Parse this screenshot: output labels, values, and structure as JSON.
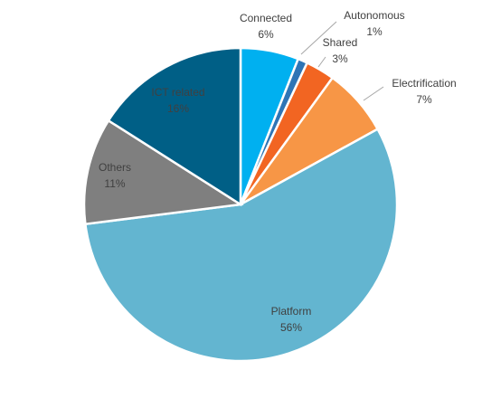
{
  "chart_data": {
    "type": "pie",
    "categories": [
      "Connected",
      "Autonomous",
      "Shared",
      "Electrification",
      "Platform",
      "Others",
      "ICT related"
    ],
    "values": [
      6,
      1,
      3,
      7,
      56,
      11,
      16
    ],
    "value_labels": [
      "6%",
      "1%",
      "3%",
      "7%",
      "56%",
      "11%",
      "16%"
    ],
    "colors": [
      "#00b0f0",
      "#2e75b6",
      "#f26522",
      "#f79646",
      "#63b5d0",
      "#7f7f7f",
      "#005f86"
    ]
  }
}
